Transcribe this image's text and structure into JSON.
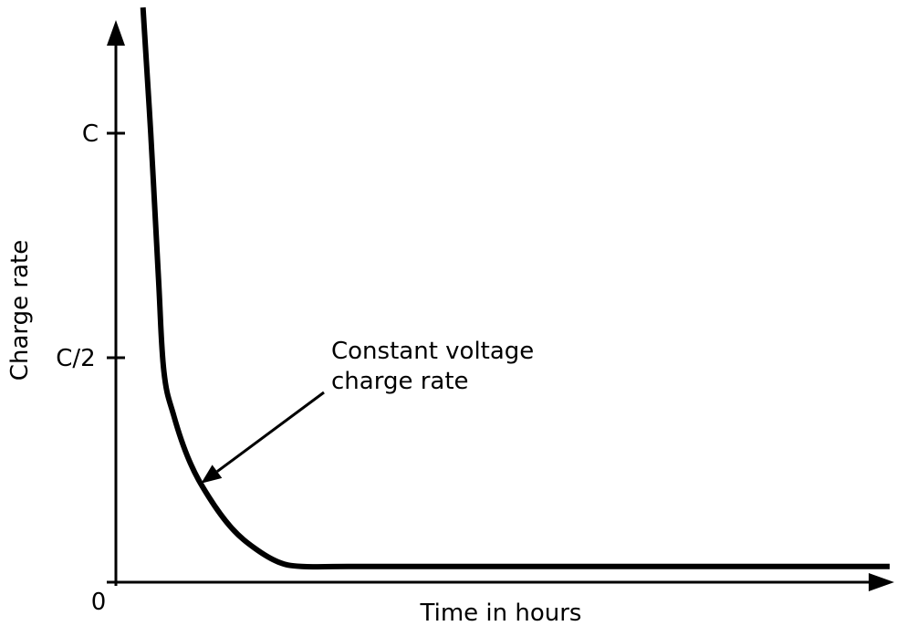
{
  "chart_data": {
    "type": "line",
    "title": "",
    "xlabel": "Time in hours",
    "ylabel": "Charge rate",
    "y_tick_labels": [
      "0",
      "C/2",
      "C"
    ],
    "y_ticks": [
      0,
      0.5,
      1.0
    ],
    "x_tick_labels": [],
    "xlim": [
      0,
      10
    ],
    "ylim": [
      0,
      1.3
    ],
    "grid": false,
    "legend": "none",
    "series": [
      {
        "x": [
          0.35,
          0.45,
          0.55,
          0.62,
          0.75,
          0.95,
          1.2,
          1.5,
          1.8,
          2.1,
          2.4,
          3.0,
          5.0,
          8.0,
          10.0
        ],
        "y": [
          1.28,
          1.0,
          0.68,
          0.47,
          0.37,
          0.27,
          0.19,
          0.12,
          0.075,
          0.045,
          0.035,
          0.035,
          0.035,
          0.035,
          0.035
        ]
      }
    ],
    "annotations": [
      {
        "text_lines": [
          "Constant voltage",
          "charge rate"
        ],
        "points_to": {
          "x": 1.1,
          "y": 0.22
        }
      }
    ]
  },
  "colors": {
    "line": "#000000",
    "axis": "#000000",
    "background": "#ffffff"
  }
}
